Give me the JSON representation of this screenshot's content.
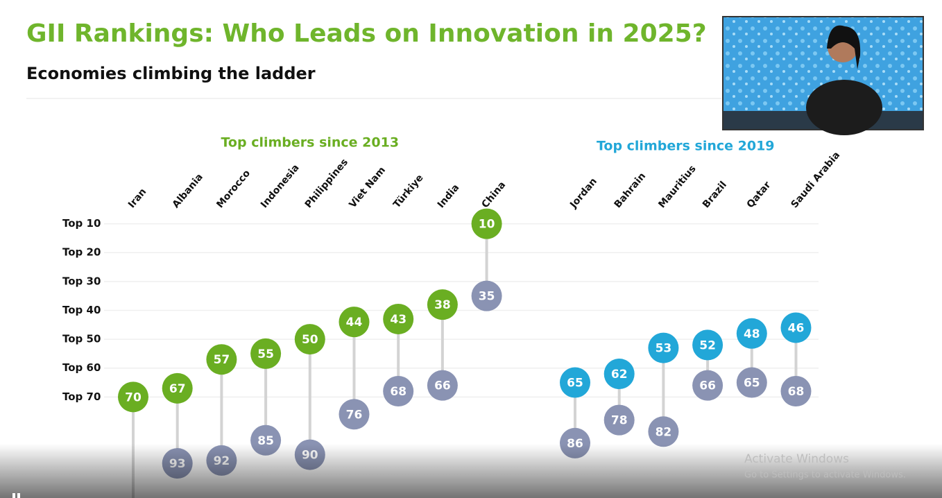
{
  "chart_data": {
    "type": "dumbbell",
    "title": "GII Rankings: Who Leads on Innovation in 2025?",
    "subtitle": "Economies climbing the ladder",
    "ylim": [
      0,
      105
    ],
    "inverted": true,
    "grid": true,
    "yticks": [
      {
        "value": 10,
        "label": "Top 10"
      },
      {
        "value": 20,
        "label": "Top 20"
      },
      {
        "value": 30,
        "label": "Top 30"
      },
      {
        "value": 40,
        "label": "Top 40"
      },
      {
        "value": 50,
        "label": "Top 50"
      },
      {
        "value": 60,
        "label": "Top 60"
      },
      {
        "value": 70,
        "label": "Top 70"
      }
    ],
    "earlier_color": "#8a93b3",
    "groups": [
      {
        "title": "Top climbers since 2013",
        "color": "#6aae22",
        "categories": [
          "Iran",
          "Albania",
          "Morocco",
          "Indonesia",
          "Philippines",
          "Viet Nam",
          "Türkiye",
          "India",
          "China"
        ],
        "values": [
          70,
          67,
          57,
          55,
          50,
          44,
          43,
          38,
          10
        ],
        "earlier_values": [
          null,
          93,
          92,
          85,
          90,
          76,
          68,
          66,
          35
        ]
      },
      {
        "title": "Top climbers since 2019",
        "color": "#22a7d8",
        "categories": [
          "Jordan",
          "Bahrain",
          "Mauritius",
          "Brazil",
          "Qatar",
          "Saudi Arabia"
        ],
        "values": [
          65,
          62,
          53,
          52,
          48,
          46
        ],
        "earlier_values": [
          86,
          78,
          82,
          66,
          65,
          68
        ]
      }
    ]
  },
  "overlay": {
    "activate_title": "Activate Windows",
    "activate_hint": "Go to Settings to activate Windows."
  }
}
